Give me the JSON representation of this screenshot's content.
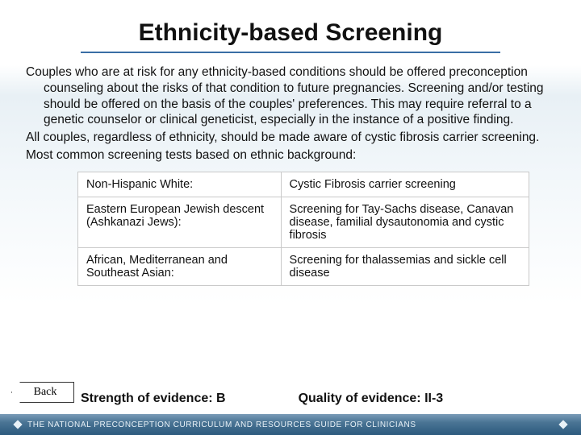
{
  "title": "Ethnicity-based Screening",
  "paragraphs": {
    "p1": "Couples who are at risk for any ethnicity-based conditions should be offered preconception counseling about the risks of that condition to future pregnancies. Screening and/or testing should be offered on the basis of the couples' preferences. This may require referral to a genetic counselor or clinical geneticist, especially in the instance of a positive finding.",
    "p2": "All couples, regardless of ethnicity, should be made aware of cystic fibrosis carrier screening.",
    "p3": "Most common screening tests based on ethnic background:"
  },
  "screening_table": {
    "rows": [
      {
        "group": "Non-Hispanic White:",
        "test": "Cystic Fibrosis carrier screening"
      },
      {
        "group": "Eastern European Jewish descent (Ashkanazi Jews):",
        "test": "Screening for Tay-Sachs disease, Canavan disease, familial dysautonomia and cystic fibrosis"
      },
      {
        "group": "African, Mediterranean and Southeast Asian:",
        "test": "Screening for thalassemias and sickle cell disease"
      }
    ],
    "border_color": "#c9c9c9",
    "cell_bg": "#ffffff",
    "font_size": 14.5
  },
  "back_button_label": "Back",
  "evidence": {
    "strength_label": "Strength of evidence:  B",
    "quality_label": "Quality of evidence: II-3"
  },
  "footer_text": "THE NATIONAL PRECONCEPTION CURRICULUM AND RESOURCES GUIDE FOR CLINICIANS",
  "colors": {
    "title_underline": "#3a6ea5",
    "footer_gradient_top": "#7a9cb8",
    "footer_gradient_bottom": "#2c5a7e",
    "body_bg_tint": "#e8f0f5",
    "text": "#111111"
  },
  "fonts": {
    "title_size_pt": 30,
    "body_size_pt": 15.5,
    "table_size_pt": 14.5,
    "evidence_size_pt": 16,
    "footer_size_pt": 10
  }
}
